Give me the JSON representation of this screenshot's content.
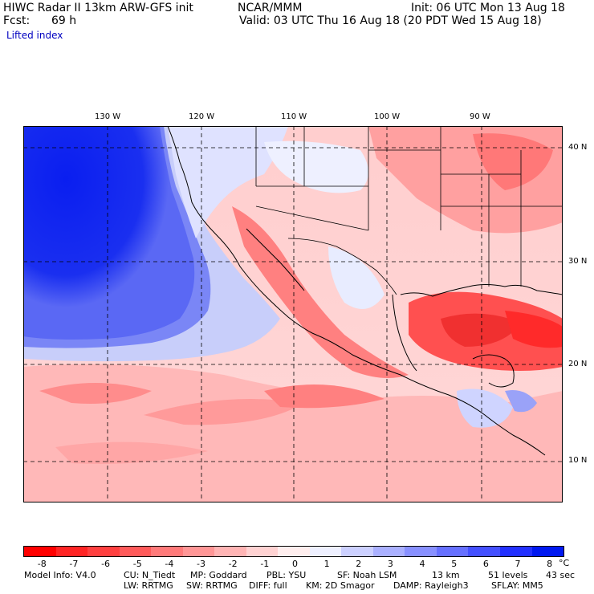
{
  "header": {
    "title": "HIWC Radar II 13km ARW-GFS init",
    "org": "NCAR/MMM",
    "init": "Init: 06 UTC Mon 13 Aug 18",
    "fcst_label": "Fcst:",
    "fcst_value": "69 h",
    "valid": "Valid: 03 UTC Thu 16 Aug 18 (20 PDT Wed 15 Aug 18)",
    "field": "Lifted index"
  },
  "axes": {
    "lon_labels": [
      "130 W",
      "120 W",
      "110 W",
      "100 W",
      "90 W"
    ],
    "lat_labels": [
      "40 N",
      "30 N",
      "20 N",
      "10 N"
    ]
  },
  "colorbar": {
    "ticks": [
      "-8",
      "-7",
      "-6",
      "-5",
      "-4",
      "-3",
      "-2",
      "-1",
      "0",
      "1",
      "2",
      "3",
      "4",
      "5",
      "6",
      "7",
      "8"
    ],
    "unit": "°C",
    "colors": [
      "#ff0000",
      "#ff2424",
      "#ff4040",
      "#ff5a5a",
      "#ff7a7a",
      "#ff9696",
      "#ffb4b4",
      "#ffd2d2",
      "#ffeeee",
      "#eef0ff",
      "#ccd0ff",
      "#aab0ff",
      "#8890ff",
      "#6670ff",
      "#4450ff",
      "#2230ff",
      "#0018f0"
    ]
  },
  "footer": {
    "line1": [
      "Model Info: V4.0",
      "CU: N_Tiedt",
      "MP: Goddard",
      "PBL: YSU",
      "SF: Noah LSM",
      "13 km",
      "51 levels",
      "43 sec"
    ],
    "line2": [
      "LW: RRTMG",
      "SW: RRTMG",
      "DIFF: full",
      "KM: 2D Smagor",
      "DAMP: Rayleigh3",
      "SFLAY: MM5"
    ]
  }
}
